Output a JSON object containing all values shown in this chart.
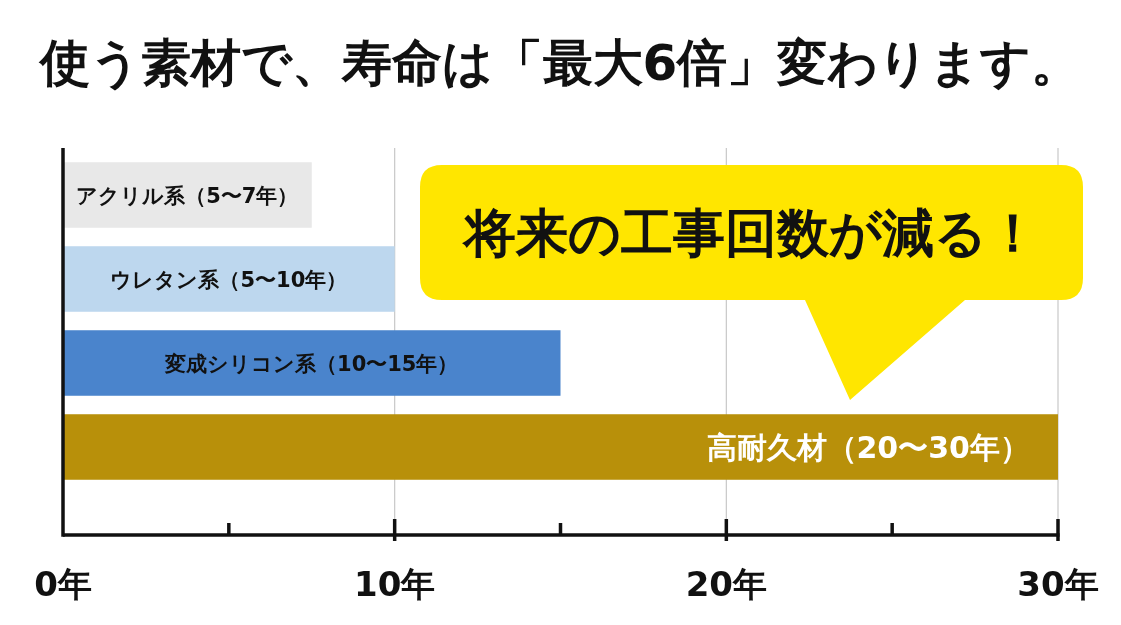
{
  "chart_data": {
    "type": "bar",
    "orientation": "horizontal",
    "title": "使う素材で、寿命は「最大6倍」変わります。",
    "categories": [
      "アクリル系（5〜7年）",
      "ウレタン系（5〜10年）",
      "変成シリコン系（10〜15年）",
      "高耐久材（20〜30年）"
    ],
    "values": [
      7.5,
      10,
      15,
      30
    ],
    "colors": [
      "#e8e8e8",
      "#bdd7ee",
      "#4a84cc",
      "#b8900a"
    ],
    "xlim": [
      0,
      30
    ],
    "xticks": [
      {
        "value": 0,
        "label": "0年"
      },
      {
        "value": 5,
        "label": null
      },
      {
        "value": 10,
        "label": "10年"
      },
      {
        "value": 15,
        "label": null
      },
      {
        "value": 20,
        "label": "20年"
      },
      {
        "value": 25,
        "label": null
      },
      {
        "value": 30,
        "label": "30年"
      }
    ],
    "grid": "x",
    "annotations": [
      "将来の工事回数が減る！"
    ]
  }
}
